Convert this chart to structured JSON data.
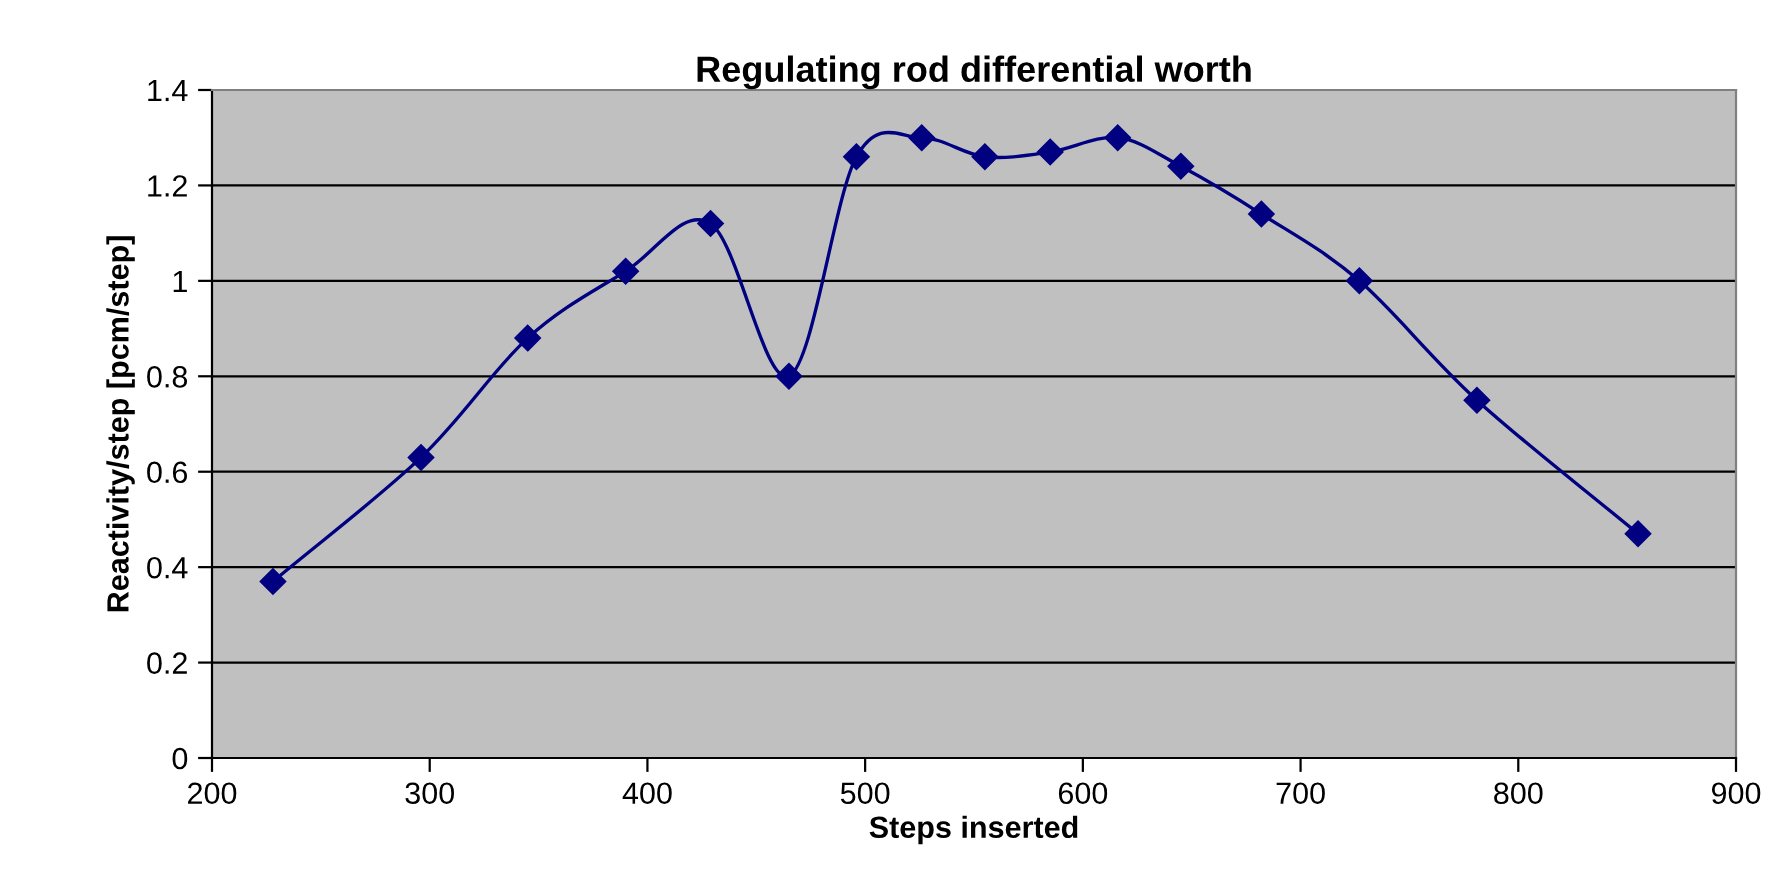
{
  "chart_data": {
    "type": "line",
    "title": "Regulating rod differential worth",
    "xlabel": "Steps inserted",
    "ylabel": "Reactivity/step [pcm/step]",
    "series": [
      {
        "color": "#000080",
        "x": [
          228,
          296,
          345,
          390,
          429,
          465,
          496,
          526,
          555,
          585,
          616,
          645,
          682,
          727,
          781,
          855
        ],
        "values": [
          0.37,
          0.63,
          0.88,
          1.02,
          1.12,
          0.8,
          1.26,
          1.3,
          1.26,
          1.27,
          1.3,
          1.24,
          1.14,
          1.0,
          0.75,
          0.47
        ]
      }
    ],
    "xlim": [
      200,
      900
    ],
    "xticks": [
      200,
      300,
      400,
      500,
      600,
      700,
      800,
      900
    ],
    "ylim": [
      0,
      1.4
    ],
    "yticks": [
      0,
      0.2,
      0.4,
      0.6,
      0.8,
      1,
      1.2,
      1.4
    ],
    "grid": "y",
    "marker": "diamond",
    "line_style": "solid",
    "legend": false
  }
}
